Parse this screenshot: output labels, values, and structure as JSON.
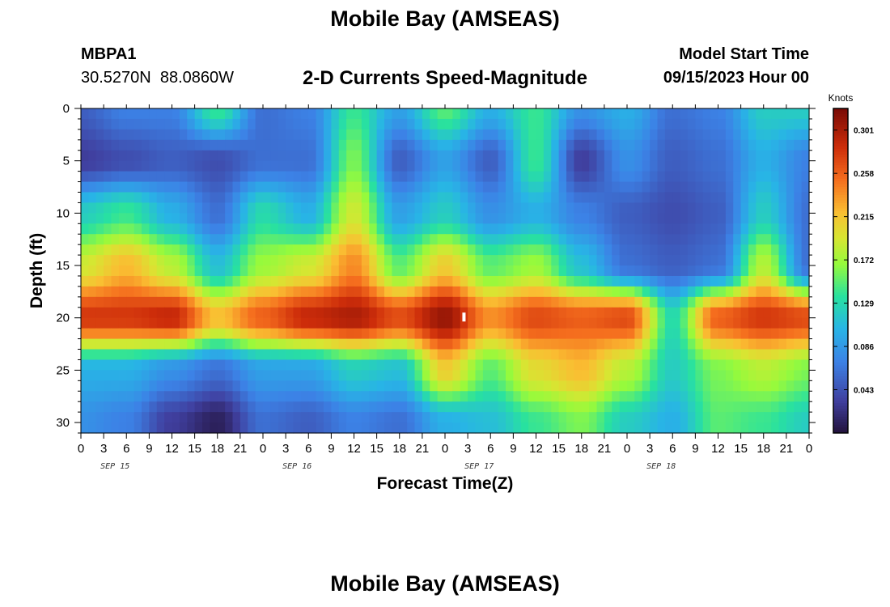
{
  "header": {
    "title": "Mobile Bay (AMSEAS)",
    "station_id": "MBPA1",
    "coordinates": "30.5270N  88.0860W",
    "subtitle": "2-D Currents Speed-Magnitude",
    "model_start_label": "Model Start Time",
    "model_start_time": "09/15/2023 Hour 00"
  },
  "footer": {
    "title": "Mobile Bay (AMSEAS)"
  },
  "chart_data": {
    "type": "heatmap",
    "title": "2-D Currents Speed-Magnitude",
    "xlabel": "Forecast Time(Z)",
    "ylabel": "Depth (ft)",
    "x_tick_labels": [
      "0",
      "3",
      "6",
      "9",
      "12",
      "15",
      "18",
      "21",
      "0",
      "3",
      "6",
      "9",
      "12",
      "15",
      "18",
      "21",
      "0",
      "3",
      "6",
      "9",
      "12",
      "15",
      "18",
      "21",
      "0",
      "3",
      "6",
      "9",
      "12",
      "15",
      "18",
      "21",
      "0"
    ],
    "x_range_hours": [
      0,
      96
    ],
    "date_labels": [
      "SEP 15",
      "SEP 16",
      "SEP 17",
      "SEP 18"
    ],
    "y_ticks": [
      0,
      5,
      10,
      15,
      20,
      25,
      30
    ],
    "ylim": [
      0,
      31
    ],
    "y_inverted": true,
    "colorbar": {
      "title": "Knots",
      "tick_labels": [
        "0.301",
        "0.258",
        "0.215",
        "0.172",
        "0.129",
        "0.086",
        "0.043"
      ],
      "tick_values": [
        0.301,
        0.258,
        0.215,
        0.172,
        0.129,
        0.086,
        0.043
      ],
      "range": [
        0.0,
        0.3225
      ],
      "colormap": "turbo"
    },
    "speed_field_knots": {
      "x_hours": [
        0,
        6,
        12,
        18,
        24,
        30,
        36,
        42,
        48,
        54,
        60,
        66,
        72,
        78,
        84,
        90,
        96
      ],
      "depth_ft": [
        0,
        5,
        10,
        15,
        20,
        25,
        30
      ],
      "values": [
        [
          0.05,
          0.07,
          0.07,
          0.14,
          0.06,
          0.07,
          0.14,
          0.09,
          0.15,
          0.1,
          0.14,
          0.08,
          0.1,
          0.06,
          0.07,
          0.12,
          0.12
        ],
        [
          0.03,
          0.04,
          0.05,
          0.04,
          0.06,
          0.06,
          0.16,
          0.05,
          0.09,
          0.05,
          0.14,
          0.03,
          0.08,
          0.05,
          0.06,
          0.1,
          0.07
        ],
        [
          0.12,
          0.14,
          0.1,
          0.06,
          0.13,
          0.1,
          0.19,
          0.09,
          0.12,
          0.08,
          0.1,
          0.07,
          0.05,
          0.04,
          0.05,
          0.12,
          0.06
        ],
        [
          0.19,
          0.22,
          0.18,
          0.11,
          0.17,
          0.19,
          0.24,
          0.15,
          0.21,
          0.15,
          0.17,
          0.11,
          0.06,
          0.05,
          0.06,
          0.18,
          0.06
        ],
        [
          0.28,
          0.28,
          0.29,
          0.22,
          0.26,
          0.29,
          0.3,
          0.27,
          0.31,
          0.24,
          0.27,
          0.26,
          0.27,
          0.13,
          0.26,
          0.28,
          0.27
        ],
        [
          0.1,
          0.1,
          0.08,
          0.06,
          0.09,
          0.09,
          0.12,
          0.11,
          0.21,
          0.15,
          0.2,
          0.22,
          0.18,
          0.12,
          0.16,
          0.18,
          0.16
        ],
        [
          0.08,
          0.07,
          0.03,
          0.01,
          0.06,
          0.05,
          0.07,
          0.06,
          0.1,
          0.11,
          0.14,
          0.16,
          0.12,
          0.1,
          0.15,
          0.14,
          0.12
        ]
      ]
    }
  }
}
